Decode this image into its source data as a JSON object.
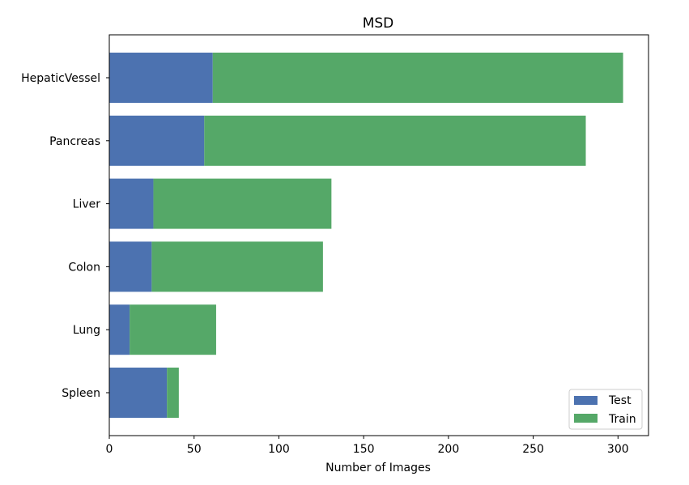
{
  "chart_data": {
    "type": "bar",
    "orientation": "horizontal",
    "stacked": true,
    "title": "MSD",
    "xlabel": "Number of Images",
    "ylabel": "",
    "categories": [
      "HepaticVessel",
      "Pancreas",
      "Liver",
      "Colon",
      "Lung",
      "Spleen"
    ],
    "series": [
      {
        "name": "Test",
        "color": "#4c72b0",
        "values": [
          61,
          56,
          26,
          25,
          12,
          34
        ]
      },
      {
        "name": "Train",
        "color": "#55a868",
        "values": [
          242,
          225,
          105,
          101,
          51,
          7
        ]
      }
    ],
    "xlim": [
      0,
      318
    ],
    "xticks": [
      0,
      50,
      100,
      150,
      200,
      250,
      300
    ],
    "grid": false,
    "legend_position": "lower-right"
  }
}
